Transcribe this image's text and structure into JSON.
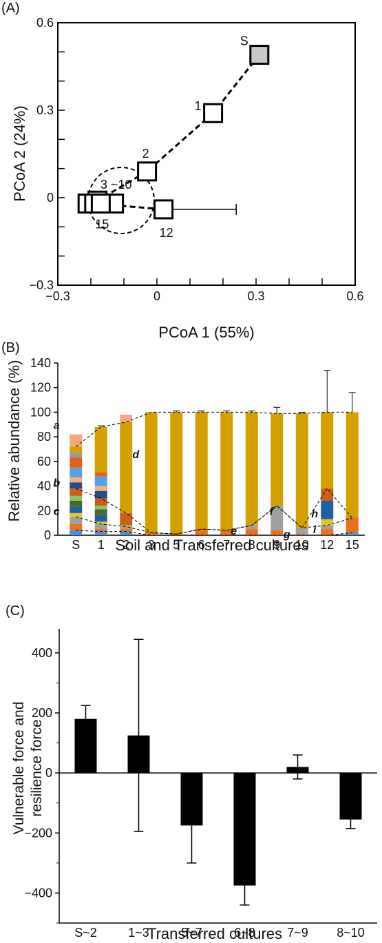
{
  "chart_data": [
    {
      "panel_label": "(A)",
      "type": "scatter",
      "xlabel": "PCoA 1 (55%)",
      "ylabel": "PCoA 2 (24%)",
      "xlim": [
        -0.3,
        0.6
      ],
      "ylim": [
        -0.3,
        0.6
      ],
      "x_ticks": [
        "-0.3",
        "0",
        "0.3",
        "0.6"
      ],
      "y_ticks": [
        "-0.3",
        "0",
        "0.3",
        "0.6"
      ],
      "points": [
        {
          "label": "S",
          "x": 0.31,
          "y": 0.49,
          "filled": true
        },
        {
          "label": "1",
          "x": 0.17,
          "y": 0.29
        },
        {
          "label": "2",
          "x": -0.03,
          "y": 0.09
        },
        {
          "label": "",
          "x": -0.18,
          "y": -0.01
        },
        {
          "label": "",
          "x": -0.16,
          "y": -0.02
        },
        {
          "label": "",
          "x": -0.21,
          "y": -0.02
        },
        {
          "label": "",
          "x": -0.13,
          "y": -0.02
        },
        {
          "label": "",
          "x": -0.19,
          "y": -0.02
        },
        {
          "label": "12",
          "x": 0.02,
          "y": -0.04,
          "error_x": [
            0.02,
            0.24
          ]
        },
        {
          "label": "15",
          "x": -0.17,
          "y": -0.02
        }
      ],
      "annotations": [
        "3 ~10"
      ],
      "grid": false
    },
    {
      "panel_label": "(B)",
      "type": "bar",
      "stacked": true,
      "xlabel": "Soil and Transferred cultures",
      "ylabel": "Relative abundance (%)",
      "categories": [
        "S",
        "1",
        "2",
        "3",
        "5",
        "6",
        "7",
        "8",
        "9",
        "10",
        "12",
        "15"
      ],
      "ylim": [
        0,
        140
      ],
      "y_ticks": [
        "0",
        "20",
        "40",
        "60",
        "80",
        "100",
        "120",
        "140"
      ],
      "series": [
        {
          "color": "#4a90d9",
          "values": [
            4,
            3,
            3,
            0,
            0,
            0,
            0,
            0,
            0,
            0,
            0,
            2
          ]
        },
        {
          "color": "#e8711f",
          "values": [
            5,
            2,
            2,
            2,
            1,
            5,
            4,
            5,
            4,
            1,
            5,
            12
          ]
        },
        {
          "color": "#a0a0a0",
          "values": [
            6,
            4,
            2,
            0,
            0,
            0,
            0,
            3,
            20,
            5,
            3,
            0
          ]
        },
        {
          "color": "#e8c51f",
          "values": [
            3,
            2,
            1,
            0,
            0,
            0,
            0,
            0,
            0,
            0,
            5,
            0
          ]
        },
        {
          "color": "#1f5fa8",
          "values": [
            5,
            5,
            0,
            0,
            0,
            0,
            0,
            0,
            0,
            0,
            15,
            0
          ]
        },
        {
          "color": "#4a6b2a",
          "values": [
            5,
            5,
            0,
            0,
            0,
            0,
            0,
            0,
            0,
            0,
            0,
            0
          ]
        },
        {
          "color": "#8ec26a",
          "values": [
            4,
            3,
            0,
            0,
            0,
            0,
            0,
            0,
            0,
            0,
            0,
            0
          ]
        },
        {
          "color": "#c9601a",
          "values": [
            6,
            6,
            10,
            0,
            0,
            0,
            0,
            0,
            0,
            0,
            10,
            0
          ]
        },
        {
          "color": "#2a4a8a",
          "values": [
            5,
            6,
            0,
            0,
            0,
            0,
            0,
            0,
            0,
            0,
            0,
            0
          ]
        },
        {
          "color": "#f0b080",
          "values": [
            4,
            4,
            0,
            0,
            0,
            0,
            0,
            0,
            0,
            0,
            0,
            0
          ]
        },
        {
          "color": "#5aa0e0",
          "values": [
            8,
            8,
            0,
            0,
            0,
            0,
            0,
            0,
            0,
            0,
            0,
            0
          ]
        },
        {
          "color": "#e25f20",
          "values": [
            8,
            3,
            0,
            0,
            0,
            0,
            0,
            0,
            0,
            0,
            0,
            0
          ]
        },
        {
          "color": "#9a9a9a",
          "values": [
            4,
            0,
            0,
            0,
            0,
            0,
            0,
            0,
            0,
            0,
            0,
            0
          ]
        },
        {
          "color": "#d4a000",
          "values": [
            5,
            37,
            74,
            98,
            99,
            95,
            96,
            92,
            75,
            93,
            62,
            86
          ]
        },
        {
          "color": "#f5a882",
          "values": [
            10,
            0,
            6,
            0,
            0,
            0,
            0,
            0,
            0,
            0,
            0,
            0
          ]
        }
      ],
      "error_bars": [
        null,
        1,
        null,
        null,
        1,
        1,
        1,
        1,
        5,
        1,
        34,
        16
      ],
      "annotations": [
        "a",
        "b",
        "c",
        "d",
        "e",
        "f",
        "g",
        "h",
        "i"
      ],
      "grid": false
    },
    {
      "panel_label": "(C)",
      "type": "bar",
      "xlabel": "Transferred cultures",
      "ylabel": "Vulnerable force and resilience force",
      "ylabel_lines": [
        "Vulnerable force and",
        "resilience force"
      ],
      "categories": [
        "S~2",
        "1~3",
        "5~7",
        "6~8",
        "7~9",
        "8~10"
      ],
      "values": [
        180,
        125,
        -175,
        -375,
        20,
        -155
      ],
      "errors": [
        45,
        320,
        125,
        65,
        40,
        30
      ],
      "ylim": [
        -500,
        480
      ],
      "y_ticks": [
        "-400",
        "-200",
        "0",
        "200",
        "400"
      ],
      "bar_color": "#000000",
      "grid": false
    }
  ]
}
